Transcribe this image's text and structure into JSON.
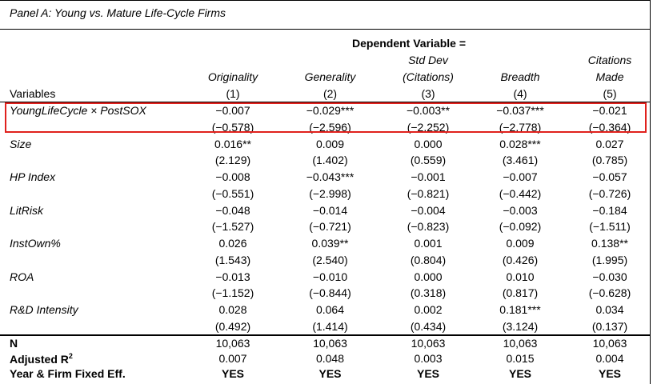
{
  "panel_title": "Panel A: Young vs. Mature Life-Cycle Firms",
  "dependent_variable_label": "Dependent Variable =",
  "column_header_row1": [
    "",
    "",
    "Std Dev",
    "",
    "Citations"
  ],
  "column_header_row2": [
    "Originality",
    "Generality",
    "(Citations)",
    "Breadth",
    "Made"
  ],
  "column_numbers": [
    "(1)",
    "(2)",
    "(3)",
    "(4)",
    "(5)"
  ],
  "variables_label": "Variables",
  "rows": [
    {
      "label": "YoungLifeCycle × PostSOX",
      "coef": [
        "−0.007",
        "−0.029***",
        "−0.003**",
        "−0.037***",
        "−0.021"
      ],
      "t": [
        "(−0.578)",
        "(−2.596)",
        "(−2.252)",
        "(−2.778)",
        "(−0.364)"
      ]
    },
    {
      "label": "Size",
      "coef": [
        "0.016**",
        "0.009",
        "0.000",
        "0.028***",
        "0.027"
      ],
      "t": [
        "(2.129)",
        "(1.402)",
        "(0.559)",
        "(3.461)",
        "(0.785)"
      ]
    },
    {
      "label": "HP Index",
      "coef": [
        "−0.008",
        "−0.043***",
        "−0.001",
        "−0.007",
        "−0.057"
      ],
      "t": [
        "(−0.551)",
        "(−2.998)",
        "(−0.821)",
        "(−0.442)",
        "(−0.726)"
      ]
    },
    {
      "label": "LitRisk",
      "coef": [
        "−0.048",
        "−0.014",
        "−0.004",
        "−0.003",
        "−0.184"
      ],
      "t": [
        "(−1.527)",
        "(−0.721)",
        "(−0.823)",
        "(−0.092)",
        "(−1.511)"
      ]
    },
    {
      "label": "InstOwn%",
      "coef": [
        "0.026",
        "0.039**",
        "0.001",
        "0.009",
        "0.138**"
      ],
      "t": [
        "(1.543)",
        "(2.540)",
        "(0.804)",
        "(0.426)",
        "(1.995)"
      ]
    },
    {
      "label": "ROA",
      "coef": [
        "−0.013",
        "−0.010",
        "0.000",
        "0.010",
        "−0.030"
      ],
      "t": [
        "(−1.152)",
        "(−0.844)",
        "(0.318)",
        "(0.817)",
        "(−0.628)"
      ]
    },
    {
      "label": "R&D Intensity",
      "coef": [
        "0.028",
        "0.064",
        "0.002",
        "0.181***",
        "0.034"
      ],
      "t": [
        "(0.492)",
        "(1.414)",
        "(0.434)",
        "(3.124)",
        "(0.137)"
      ]
    }
  ],
  "footer_rows": [
    {
      "label": "N",
      "values": [
        "10,063",
        "10,063",
        "10,063",
        "10,063",
        "10,063"
      ],
      "bold_values": false
    },
    {
      "label": "Adjusted R",
      "label_sup": "2",
      "values": [
        "0.007",
        "0.048",
        "0.003",
        "0.015",
        "0.004"
      ],
      "bold_values": false
    },
    {
      "label": "Year & Firm Fixed Eff.",
      "values": [
        "YES",
        "YES",
        "YES",
        "YES",
        "YES"
      ],
      "bold_values": true
    }
  ],
  "highlight_color": "#e0211d"
}
